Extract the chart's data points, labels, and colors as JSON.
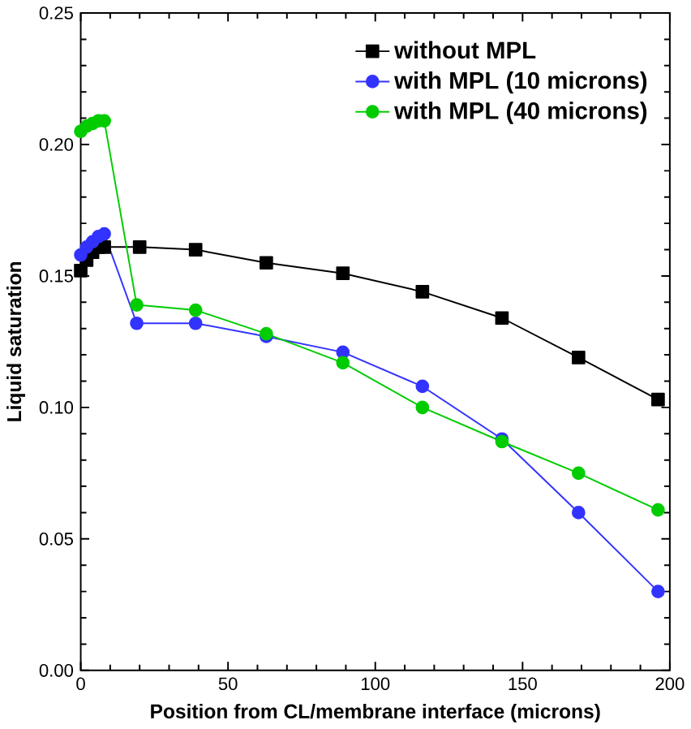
{
  "chart_data": {
    "type": "line",
    "xlabel": "Position from CL/membrane interface (microns)",
    "ylabel": "Liquid saturation",
    "xlim": [
      0,
      200
    ],
    "ylim": [
      0,
      0.25
    ],
    "xticks": [
      0,
      50,
      100,
      150,
      200
    ],
    "yticks": [
      {
        "value": 0,
        "label": "0.00"
      },
      {
        "value": 0.05,
        "label": "0.05"
      },
      {
        "value": 0.1,
        "label": "0.10"
      },
      {
        "value": 0.15,
        "label": "0.15"
      },
      {
        "value": 0.2,
        "label": "0.20"
      },
      {
        "value": 0.25,
        "label": "0.25"
      }
    ],
    "legend": "top right",
    "grid": false,
    "series": [
      {
        "name": "without MPL",
        "color": "#000000",
        "marker": "square",
        "x": [
          0,
          2,
          4,
          6,
          8,
          20,
          39,
          63,
          89,
          116,
          143,
          169,
          196
        ],
        "values": [
          0.152,
          0.156,
          0.159,
          0.161,
          0.161,
          0.161,
          0.16,
          0.155,
          0.151,
          0.144,
          0.134,
          0.119,
          0.103
        ]
      },
      {
        "name": "with MPL (10 microns)",
        "color": "#3333ff",
        "marker": "circle",
        "x": [
          0,
          2,
          4,
          6,
          8,
          19,
          39,
          63,
          89,
          116,
          143,
          169,
          196
        ],
        "values": [
          0.158,
          0.161,
          0.163,
          0.165,
          0.166,
          0.132,
          0.132,
          0.127,
          0.121,
          0.108,
          0.088,
          0.06,
          0.03
        ]
      },
      {
        "name": "with MPL (40 microns)",
        "color": "#00cc00",
        "marker": "circle",
        "x": [
          0,
          2,
          4,
          6,
          8,
          19,
          39,
          63,
          89,
          116,
          143,
          169,
          196
        ],
        "values": [
          0.205,
          0.207,
          0.208,
          0.209,
          0.209,
          0.139,
          0.137,
          0.128,
          0.117,
          0.1,
          0.087,
          0.075,
          0.061
        ]
      }
    ]
  }
}
